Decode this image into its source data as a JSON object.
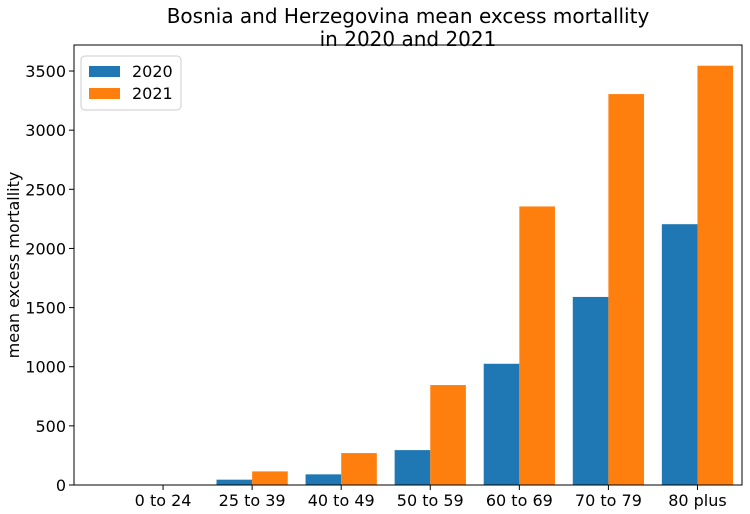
{
  "chart_data": {
    "type": "bar",
    "title_lines": [
      "Bosnia and Herzegovina mean excess mortallity",
      "in 2020 and 2021"
    ],
    "xlabel": "",
    "ylabel": "mean excess mortallity",
    "categories": [
      "0 to 24",
      "25 to 39",
      "40 to 49",
      "50 to 59",
      "60 to 69",
      "70 to 79",
      "80 plus"
    ],
    "series": [
      {
        "name": "2020",
        "color": "#1f77b4",
        "values": [
          0,
          45,
          90,
          295,
          1025,
          1590,
          2205
        ]
      },
      {
        "name": "2021",
        "color": "#ff7f0e",
        "values": [
          0,
          115,
          270,
          845,
          2355,
          3305,
          3545
        ]
      }
    ],
    "ylim": [
      0,
      3720
    ],
    "yticks": [
      0,
      500,
      1000,
      1500,
      2000,
      2500,
      3000,
      3500
    ],
    "grid": false,
    "legend_position": "top-left"
  }
}
